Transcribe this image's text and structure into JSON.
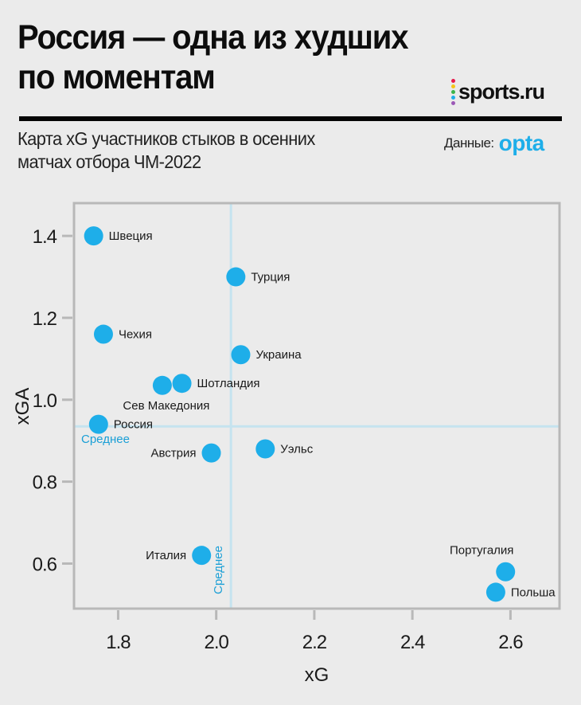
{
  "header": {
    "title_line1": "Россия — одна из худших",
    "title_line2": "по моментам",
    "logo_text": "sports.ru",
    "logo_dot_colors": [
      "#e6194b",
      "#f5c518",
      "#3cb44b",
      "#1eaee9",
      "#9b59b6"
    ],
    "subtitle_line1": "Карта xG участников стыков в осенних",
    "subtitle_line2": "матчах отбора ЧМ-2022",
    "source_label": "Данные:",
    "source_brand": "opta",
    "source_brand_color": "#1eaee9"
  },
  "colors": {
    "background": "#ebebeb",
    "point": "#1eaee9",
    "average_line": "#c5e3ef",
    "average_label": "#1a9fd6",
    "frame": "#b8b8b8"
  },
  "chart_data": {
    "type": "scatter",
    "title": "Россия — одна из худших по моментам",
    "subtitle": "Карта xG участников стыков в осенних матчах отбора ЧМ-2022",
    "xlabel": "xG",
    "ylabel": "xGA",
    "xlim": [
      1.71,
      2.7
    ],
    "ylim": [
      0.49,
      1.48
    ],
    "xticks": [
      1.8,
      2.0,
      2.2,
      2.4,
      2.6
    ],
    "xtick_labels": [
      "1.8",
      "2.0",
      "2.2",
      "2.4",
      "2.6"
    ],
    "yticks": [
      0.6,
      0.8,
      1.0,
      1.2,
      1.4
    ],
    "ytick_labels": [
      "0.6",
      "0.8",
      "1.0",
      "1.2",
      "1.4"
    ],
    "grid": false,
    "averages": {
      "xG": 2.03,
      "xGA": 0.935,
      "label": "Среднее"
    },
    "points": [
      {
        "name": "Швеция",
        "xG": 1.75,
        "xGA": 1.4,
        "label_side": "right"
      },
      {
        "name": "Турция",
        "xG": 2.04,
        "xGA": 1.3,
        "label_side": "right"
      },
      {
        "name": "Чехия",
        "xG": 1.77,
        "xGA": 1.16,
        "label_side": "right"
      },
      {
        "name": "Украина",
        "xG": 2.05,
        "xGA": 1.11,
        "label_side": "right"
      },
      {
        "name": "Шотландия",
        "xG": 1.93,
        "xGA": 1.04,
        "label_side": "right"
      },
      {
        "name": "Сев Македония",
        "xG": 1.89,
        "xGA": 1.035,
        "label_side": "below"
      },
      {
        "name": "Россия",
        "xG": 1.76,
        "xGA": 0.94,
        "label_side": "right"
      },
      {
        "name": "Австрия",
        "xG": 1.99,
        "xGA": 0.87,
        "label_side": "left"
      },
      {
        "name": "Уэльс",
        "xG": 2.1,
        "xGA": 0.88,
        "label_side": "right"
      },
      {
        "name": "Италия",
        "xG": 1.97,
        "xGA": 0.62,
        "label_side": "left"
      },
      {
        "name": "Португалия",
        "xG": 2.59,
        "xGA": 0.58,
        "label_side": "above"
      },
      {
        "name": "Польша",
        "xG": 2.57,
        "xGA": 0.53,
        "label_side": "right"
      }
    ]
  }
}
